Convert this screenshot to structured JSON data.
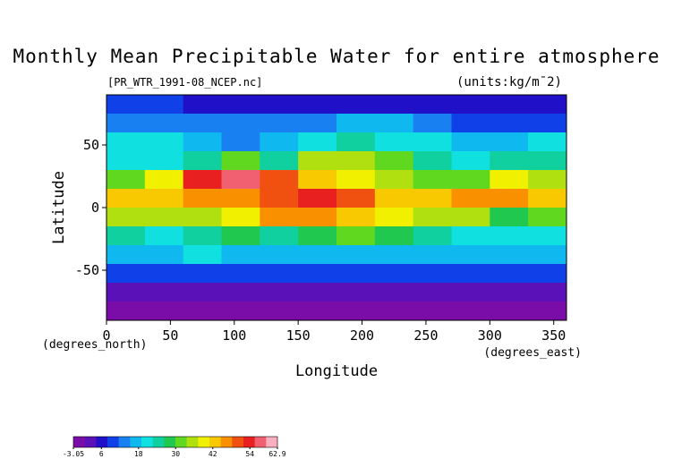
{
  "chart_data": {
    "type": "heatmap",
    "title": "Monthly Mean Precipitable Water for entire atmosphere",
    "subtitle_left": "[PR_WTR_1991-08_NCEP.nc]",
    "subtitle_right": "(units:kg/m¯2)",
    "x_label": "Longitude",
    "y_label": "Latitude",
    "x_unit": "(degrees_east)",
    "y_unit": "(degrees_north)",
    "xlim": [
      0,
      360
    ],
    "ylim": [
      -90,
      90
    ],
    "xticks": [
      0,
      50,
      100,
      150,
      200,
      250,
      300,
      350
    ],
    "yticks": [
      -50,
      0,
      50
    ],
    "z": [
      [
        8,
        8,
        7,
        6,
        7,
        7,
        6,
        5,
        5,
        5,
        6,
        7
      ],
      [
        12,
        14,
        12,
        12,
        14,
        14,
        16,
        16,
        12,
        10,
        8,
        10
      ],
      [
        20,
        20,
        18,
        14,
        16,
        20,
        24,
        22,
        20,
        16,
        18,
        20
      ],
      [
        20,
        22,
        24,
        30,
        24,
        34,
        34,
        30,
        24,
        20,
        26,
        24
      ],
      [
        30,
        40,
        54,
        56,
        50,
        44,
        40,
        36,
        30,
        32,
        38,
        34
      ],
      [
        42,
        44,
        46,
        48,
        50,
        54,
        50,
        42,
        42,
        46,
        48,
        44
      ],
      [
        36,
        34,
        36,
        40,
        46,
        46,
        44,
        40,
        36,
        34,
        28,
        30
      ],
      [
        26,
        20,
        26,
        28,
        24,
        28,
        30,
        28,
        24,
        22,
        20,
        22
      ],
      [
        16,
        18,
        20,
        18,
        16,
        18,
        18,
        16,
        16,
        16,
        16,
        16
      ],
      [
        10,
        10,
        10,
        10,
        10,
        10,
        10,
        10,
        10,
        10,
        10,
        10
      ],
      [
        4,
        4,
        4,
        4,
        4,
        4,
        4,
        4,
        4,
        4,
        4,
        4
      ],
      [
        -2,
        -2,
        -2,
        -2,
        -2,
        -2,
        -2,
        -2,
        -2,
        -2,
        -2,
        -2
      ]
    ],
    "colorbar": {
      "ticks": [
        -3.05,
        6,
        18,
        30,
        42,
        54,
        62.9
      ],
      "colors": [
        "#7a0da8",
        "#5a12b8",
        "#2010c8",
        "#1040e8",
        "#1880f0",
        "#10b8f0",
        "#10e0e0",
        "#10d0a0",
        "#20c850",
        "#60d820",
        "#b0e010",
        "#f0f000",
        "#f8c800",
        "#f89000",
        "#f05010",
        "#e82020",
        "#f06070",
        "#f8b0c0"
      ]
    }
  }
}
